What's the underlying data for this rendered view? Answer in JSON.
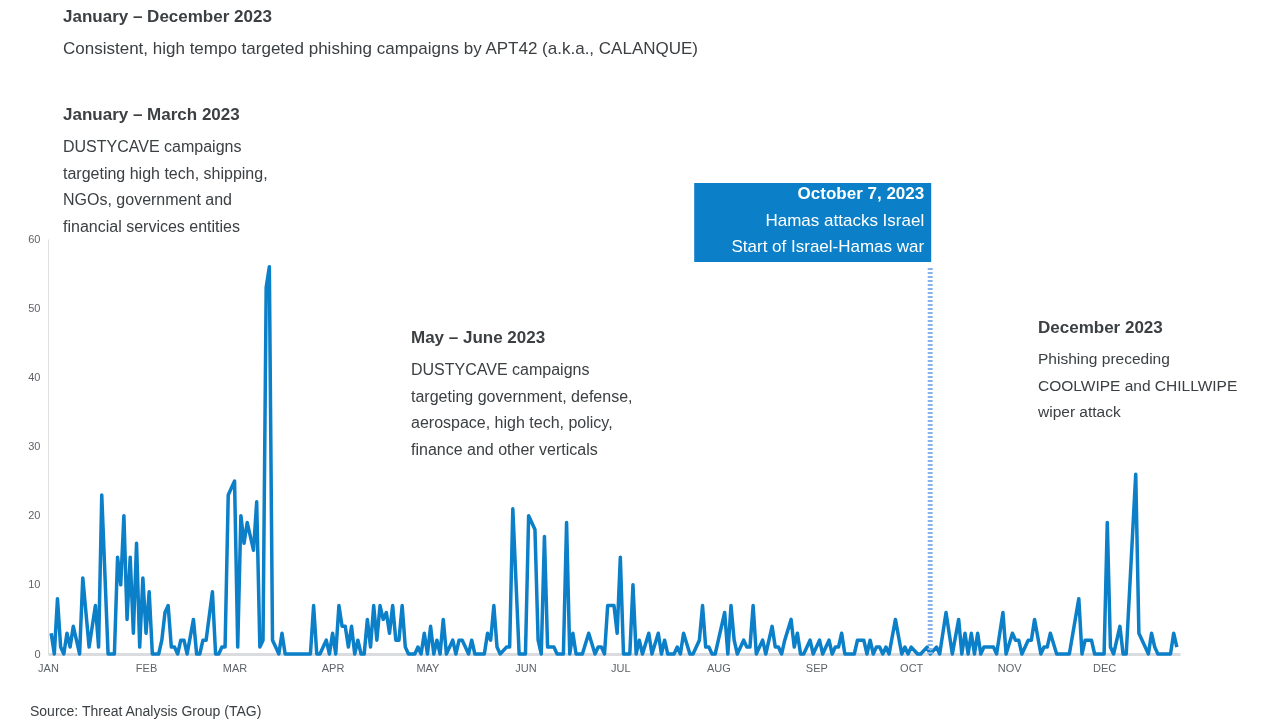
{
  "chart_data": {
    "type": "line",
    "annotations": [
      "January – December 2023",
      "Consistent, high tempo targeted phishing campaigns by APT42 (a.k.a., CALANQUE)",
      "January – March 2023",
      "DUSTYCAVE campaigns\ntargeting high tech, shipping,\nNGOs, government and\nfinancial services entities",
      "May – June 2023",
      "DUSTYCAVE campaigns\ntargeting government, defense,\naerospace, high tech, policy,\nfinance and other verticals",
      "December 2023",
      "Phishing preceding\nCOOLWIPE and CHILLWIPE\nwiper attack",
      "Source: Threat Analysis Group (TAG)"
    ],
    "x": [
      "2023-01-02",
      "2023-01-03",
      "2023-01-04",
      "2023-01-05",
      "2023-01-06",
      "2023-01-07",
      "2023-01-08",
      "2023-01-09",
      "2023-01-10",
      "2023-01-11",
      "2023-01-12",
      "2023-01-14",
      "2023-01-16",
      "2023-01-17",
      "2023-01-18",
      "2023-01-20",
      "2023-01-22",
      "2023-01-23",
      "2023-01-24",
      "2023-01-25",
      "2023-01-26",
      "2023-01-27",
      "2023-01-28",
      "2023-01-29",
      "2023-01-30",
      "2023-01-31",
      "2023-02-01",
      "2023-02-02",
      "2023-02-03",
      "2023-02-05",
      "2023-02-06",
      "2023-02-07",
      "2023-02-08",
      "2023-02-09",
      "2023-02-10",
      "2023-02-11",
      "2023-02-12",
      "2023-02-13",
      "2023-02-14",
      "2023-02-16",
      "2023-02-17",
      "2023-02-18",
      "2023-02-19",
      "2023-02-20",
      "2023-02-22",
      "2023-02-23",
      "2023-02-24",
      "2023-02-25",
      "2023-02-26",
      "2023-02-27",
      "2023-03-01",
      "2023-03-02",
      "2023-03-03",
      "2023-03-04",
      "2023-03-05",
      "2023-03-06",
      "2023-03-07",
      "2023-03-08",
      "2023-03-09",
      "2023-03-10",
      "2023-03-11",
      "2023-03-12",
      "2023-03-13",
      "2023-03-14",
      "2023-03-15",
      "2023-03-16",
      "2023-03-17",
      "2023-03-25",
      "2023-03-26",
      "2023-03-27",
      "2023-03-28",
      "2023-03-30",
      "2023-03-31",
      "2023-04-01",
      "2023-04-02",
      "2023-04-03",
      "2023-04-04",
      "2023-04-05",
      "2023-04-06",
      "2023-04-07",
      "2023-04-08",
      "2023-04-09",
      "2023-04-10",
      "2023-04-11",
      "2023-04-12",
      "2023-04-13",
      "2023-04-14",
      "2023-04-15",
      "2023-04-16",
      "2023-04-17",
      "2023-04-18",
      "2023-04-19",
      "2023-04-20",
      "2023-04-21",
      "2023-04-22",
      "2023-04-23",
      "2023-04-24",
      "2023-04-25",
      "2023-04-27",
      "2023-04-28",
      "2023-04-29",
      "2023-04-30",
      "2023-05-01",
      "2023-05-02",
      "2023-05-03",
      "2023-05-04",
      "2023-05-05",
      "2023-05-06",
      "2023-05-07",
      "2023-05-09",
      "2023-05-10",
      "2023-05-11",
      "2023-05-12",
      "2023-05-13",
      "2023-05-14",
      "2023-05-15",
      "2023-05-16",
      "2023-05-19",
      "2023-05-20",
      "2023-05-21",
      "2023-05-22",
      "2023-05-23",
      "2023-05-24",
      "2023-05-26",
      "2023-05-27",
      "2023-05-28",
      "2023-05-30",
      "2023-06-01",
      "2023-06-02",
      "2023-06-04",
      "2023-06-05",
      "2023-06-06",
      "2023-06-07",
      "2023-06-08",
      "2023-06-10",
      "2023-06-11",
      "2023-06-13",
      "2023-06-14",
      "2023-06-15",
      "2023-06-16",
      "2023-06-17",
      "2023-06-19",
      "2023-06-21",
      "2023-06-23",
      "2023-06-24",
      "2023-06-25",
      "2023-06-26",
      "2023-06-27",
      "2023-06-29",
      "2023-06-30",
      "2023-07-01",
      "2023-07-02",
      "2023-07-04",
      "2023-07-05",
      "2023-07-06",
      "2023-07-07",
      "2023-07-08",
      "2023-07-10",
      "2023-07-11",
      "2023-07-13",
      "2023-07-14",
      "2023-07-15",
      "2023-07-16",
      "2023-07-18",
      "2023-07-19",
      "2023-07-20",
      "2023-07-21",
      "2023-07-23",
      "2023-07-24",
      "2023-07-26",
      "2023-07-27",
      "2023-07-28",
      "2023-07-29",
      "2023-07-30",
      "2023-07-31",
      "2023-08-01",
      "2023-08-03",
      "2023-08-04",
      "2023-08-05",
      "2023-08-06",
      "2023-08-07",
      "2023-08-09",
      "2023-08-10",
      "2023-08-11",
      "2023-08-12",
      "2023-08-13",
      "2023-08-15",
      "2023-08-16",
      "2023-08-18",
      "2023-08-19",
      "2023-08-20",
      "2023-08-21",
      "2023-08-22",
      "2023-08-24",
      "2023-08-25",
      "2023-08-26",
      "2023-08-27",
      "2023-08-28",
      "2023-08-30",
      "2023-08-31",
      "2023-09-02",
      "2023-09-03",
      "2023-09-05",
      "2023-09-06",
      "2023-09-07",
      "2023-09-08",
      "2023-09-09",
      "2023-09-10",
      "2023-09-13",
      "2023-09-14",
      "2023-09-16",
      "2023-09-17",
      "2023-09-18",
      "2023-09-19",
      "2023-09-20",
      "2023-09-21",
      "2023-09-22",
      "2023-09-23",
      "2023-09-24",
      "2023-09-26",
      "2023-09-28",
      "2023-09-29",
      "2023-09-30",
      "2023-10-01",
      "2023-10-03",
      "2023-10-04",
      "2023-10-06",
      "2023-10-07",
      "2023-10-09",
      "2023-10-10",
      "2023-10-12",
      "2023-10-14",
      "2023-10-16",
      "2023-10-17",
      "2023-10-18",
      "2023-10-19",
      "2023-10-20",
      "2023-10-21",
      "2023-10-22",
      "2023-10-23",
      "2023-10-24",
      "2023-10-27",
      "2023-10-28",
      "2023-10-30",
      "2023-10-31",
      "2023-11-02",
      "2023-11-03",
      "2023-11-04",
      "2023-11-05",
      "2023-11-07",
      "2023-11-08",
      "2023-11-09",
      "2023-11-11",
      "2023-11-12",
      "2023-11-13",
      "2023-11-14",
      "2023-11-16",
      "2023-11-20",
      "2023-11-23",
      "2023-11-24",
      "2023-11-25",
      "2023-11-27",
      "2023-11-28",
      "2023-12-01",
      "2023-12-02",
      "2023-12-03",
      "2023-12-04",
      "2023-12-06",
      "2023-12-07",
      "2023-12-08",
      "2023-12-11",
      "2023-12-12",
      "2023-12-14",
      "2023-12-15",
      "2023-12-16",
      "2023-12-17",
      "2023-12-18",
      "2023-12-22",
      "2023-12-23",
      "2023-12-24"
    ],
    "series": [
      {
        "color": "#0b7fc7",
        "values": [
          3,
          0,
          8,
          1,
          0,
          3,
          1,
          4,
          2,
          0,
          11,
          1,
          7,
          1,
          23,
          0,
          0,
          14,
          10,
          20,
          5,
          14,
          3,
          16,
          1,
          11,
          3,
          9,
          0,
          0,
          2,
          6,
          7,
          1,
          1,
          0,
          2,
          2,
          0,
          5,
          0,
          0,
          2,
          2,
          9,
          0,
          0,
          1,
          1,
          23,
          25,
          1,
          20,
          16,
          19,
          17,
          15,
          22,
          1,
          2,
          53,
          56,
          2,
          1,
          0,
          3,
          0,
          0,
          7,
          0,
          0,
          2,
          0,
          3,
          0,
          7,
          4,
          4,
          1,
          4,
          0,
          2,
          0,
          0,
          5,
          1,
          7,
          2,
          7,
          5,
          6,
          3,
          7,
          2,
          2,
          7,
          1,
          0,
          0,
          1,
          0,
          3,
          0,
          4,
          0,
          2,
          0,
          5,
          0,
          2,
          0,
          2,
          2,
          1,
          0,
          2,
          0,
          0,
          3,
          2,
          7,
          1,
          0,
          1,
          1,
          21,
          0,
          0,
          20,
          18,
          2,
          0,
          17,
          1,
          1,
          0,
          0,
          19,
          0,
          3,
          0,
          0,
          3,
          0,
          1,
          1,
          0,
          7,
          7,
          3,
          14,
          0,
          0,
          10,
          0,
          2,
          0,
          3,
          0,
          3,
          0,
          2,
          0,
          0,
          1,
          0,
          3,
          0,
          0,
          2,
          7,
          1,
          1,
          0,
          0,
          2,
          6,
          0,
          7,
          2,
          0,
          2,
          1,
          1,
          7,
          0,
          2,
          0,
          4,
          1,
          1,
          0,
          2,
          5,
          1,
          3,
          0,
          0,
          2,
          0,
          2,
          0,
          2,
          0,
          1,
          1,
          3,
          0,
          0,
          2,
          2,
          0,
          2,
          0,
          1,
          1,
          0,
          1,
          0,
          5,
          0,
          1,
          0,
          1,
          0,
          0,
          1,
          0,
          1,
          0,
          6,
          0,
          5,
          0,
          3,
          0,
          3,
          0,
          3,
          0,
          1,
          1,
          0,
          6,
          0,
          3,
          2,
          2,
          0,
          2,
          2,
          5,
          0,
          1,
          1,
          3,
          0,
          0,
          8,
          0,
          2,
          2,
          0,
          0,
          19,
          1,
          0,
          4,
          0,
          0,
          26,
          3,
          1,
          0,
          3,
          1,
          0,
          0,
          3,
          1
        ]
      }
    ],
    "xlim": [
      "2023-01-01",
      "2023-12-25"
    ],
    "xticks": [
      {
        "value": "2023-01-01",
        "label": "JAN"
      },
      {
        "value": "2023-02-01",
        "label": "FEB"
      },
      {
        "value": "2023-03-01",
        "label": "MAR"
      },
      {
        "value": "2023-04-01",
        "label": "APR"
      },
      {
        "value": "2023-05-01",
        "label": "MAY"
      },
      {
        "value": "2023-06-01",
        "label": "JUN"
      },
      {
        "value": "2023-07-01",
        "label": "JUL"
      },
      {
        "value": "2023-08-01",
        "label": "AUG"
      },
      {
        "value": "2023-09-01",
        "label": "SEP"
      },
      {
        "value": "2023-10-01",
        "label": "OCT"
      },
      {
        "value": "2023-11-01",
        "label": "NOV"
      },
      {
        "value": "2023-12-01",
        "label": "DEC"
      }
    ],
    "ylim": [
      0,
      60
    ],
    "yticks": [
      0,
      10,
      20,
      30,
      40,
      50,
      60
    ],
    "ref_lines": [
      {
        "axis": "x",
        "value": "2023-10-07",
        "label": "October 7, 2023\nHamas attacks Israel\nStart of Israel-Hamas war",
        "color": "#8ab4e8",
        "line_style": "dashed"
      }
    ],
    "grid": false
  }
}
